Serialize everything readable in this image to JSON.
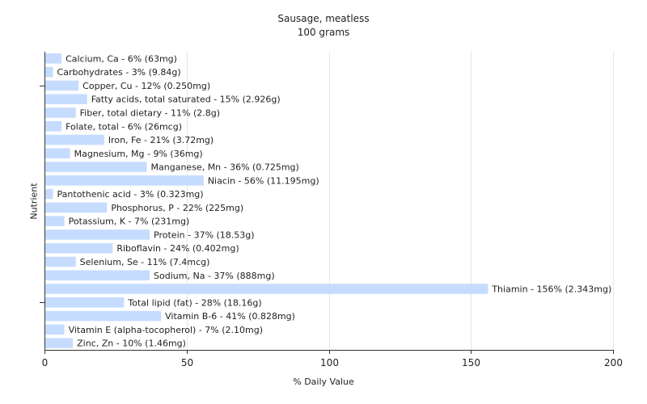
{
  "chart_data": {
    "type": "bar",
    "orientation": "horizontal",
    "title": "Sausage, meatless",
    "subtitle": "100 grams",
    "xlabel": "% Daily Value",
    "ylabel": "Nutrient",
    "xlim": [
      0,
      200
    ],
    "xticks": [
      0,
      50,
      100,
      150,
      200
    ],
    "grid": "vertical",
    "legend": "none",
    "bar_color": "#c6dcff",
    "categories": [
      "Calcium, Ca",
      "Carbohydrates",
      "Copper, Cu",
      "Fatty acids, total saturated",
      "Fiber, total dietary",
      "Folate, total",
      "Iron, Fe",
      "Magnesium, Mg",
      "Manganese, Mn",
      "Niacin",
      "Pantothenic acid",
      "Phosphorus, P",
      "Potassium, K",
      "Protein",
      "Riboflavin",
      "Selenium, Se",
      "Sodium, Na",
      "Thiamin",
      "Total lipid (fat)",
      "Vitamin B-6",
      "Vitamin E (alpha-tocopherol)",
      "Zinc, Zn"
    ],
    "values": [
      6,
      3,
      12,
      15,
      11,
      6,
      21,
      9,
      36,
      56,
      3,
      22,
      7,
      37,
      24,
      11,
      37,
      156,
      28,
      41,
      7,
      10
    ],
    "labels": [
      "Calcium, Ca - 6% (63mg)",
      "Carbohydrates - 3% (9.84g)",
      "Copper, Cu - 12% (0.250mg)",
      "Fatty acids, total saturated - 15% (2.926g)",
      "Fiber, total dietary - 11% (2.8g)",
      "Folate, total - 6% (26mcg)",
      "Iron, Fe - 21% (3.72mg)",
      "Magnesium, Mg - 9% (36mg)",
      "Manganese, Mn - 36% (0.725mg)",
      "Niacin - 56% (11.195mg)",
      "Pantothenic acid - 3% (0.323mg)",
      "Phosphorus, P - 22% (225mg)",
      "Potassium, K - 7% (231mg)",
      "Protein - 37% (18.53g)",
      "Riboflavin - 24% (0.402mg)",
      "Selenium, Se - 11% (7.4mcg)",
      "Sodium, Na - 37% (888mg)",
      "Thiamin - 156% (2.343mg)",
      "Total lipid (fat) - 28% (18.16g)",
      "Vitamin B-6 - 41% (0.828mg)",
      "Vitamin E (alpha-tocopherol) - 7% (2.10mg)",
      "Zinc, Zn - 10% (1.46mg)"
    ]
  }
}
